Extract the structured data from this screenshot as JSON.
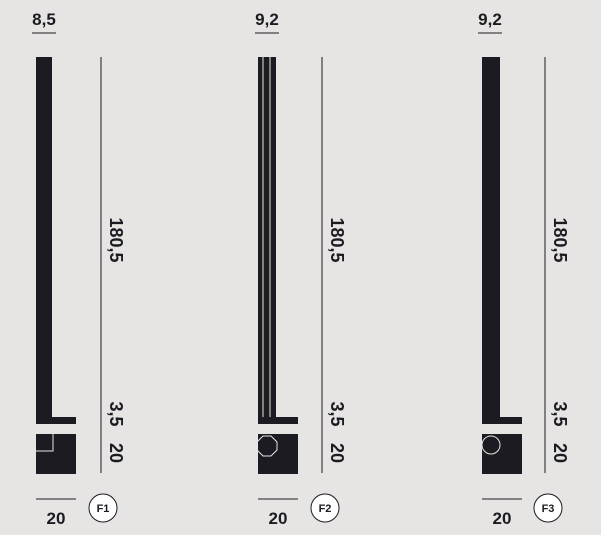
{
  "colors": {
    "background": "#e6e5e3",
    "ink": "#1c1b21",
    "detail_line": "#e6e5e3",
    "badge_fill": "#ffffff"
  },
  "figures": [
    {
      "badge": "F1",
      "top_width": "8,5",
      "height_main": "180,5",
      "height_base_plate": "3,5",
      "height_foot": "20",
      "bottom_width": "20",
      "foot_detail_icon": "corner-notch-icon"
    },
    {
      "badge": "F2",
      "top_width": "9,2",
      "height_main": "180,5",
      "height_base_plate": "3,5",
      "height_foot": "20",
      "bottom_width": "20",
      "foot_detail_icon": "octagon-icon"
    },
    {
      "badge": "F3",
      "top_width": "9,2",
      "height_main": "180,5",
      "height_base_plate": "3,5",
      "height_foot": "20",
      "bottom_width": "20",
      "foot_detail_icon": "circle-icon"
    }
  ]
}
